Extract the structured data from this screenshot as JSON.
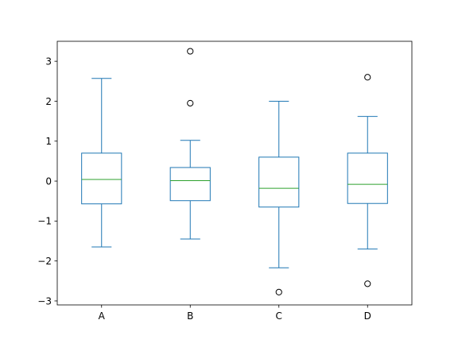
{
  "chart_data": {
    "type": "box",
    "title": "",
    "xlabel": "",
    "ylabel": "",
    "categories": [
      "A",
      "B",
      "C",
      "D"
    ],
    "ylim": [
      -3.1,
      3.5
    ],
    "yticks": [
      -3,
      -2,
      -1,
      0,
      1,
      2,
      3
    ],
    "ytick_labels": [
      "−3",
      "−2",
      "−1",
      "0",
      "1",
      "2",
      "3"
    ],
    "grid": false,
    "boxes": [
      {
        "name": "A",
        "whisker_low": -1.65,
        "q1": -0.57,
        "median": 0.04,
        "q3": 0.7,
        "whisker_high": 2.57,
        "outliers": []
      },
      {
        "name": "B",
        "whisker_low": -1.45,
        "q1": -0.49,
        "median": 0.01,
        "q3": 0.34,
        "whisker_high": 1.02,
        "outliers": [
          3.25,
          1.95
        ]
      },
      {
        "name": "C",
        "whisker_low": -2.17,
        "q1": -0.65,
        "median": -0.18,
        "q3": 0.6,
        "whisker_high": 2.0,
        "outliers": [
          -2.78
        ]
      },
      {
        "name": "D",
        "whisker_low": -1.7,
        "q1": -0.56,
        "median": -0.08,
        "q3": 0.7,
        "whisker_high": 1.62,
        "outliers": [
          2.6,
          -2.57
        ]
      }
    ],
    "colors": {
      "box": "#1f77b4",
      "median": "#2ca02c",
      "outlier": "#000000",
      "axis": "#000000"
    }
  }
}
